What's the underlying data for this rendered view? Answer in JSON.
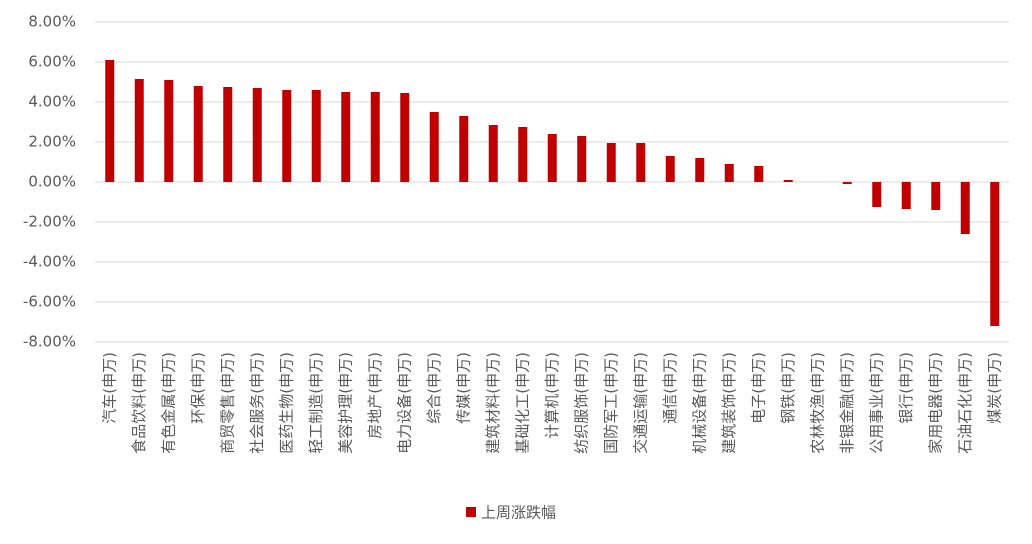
{
  "chart_data": {
    "type": "bar",
    "categories": [
      "汽车(申万)",
      "食品饮料(申万)",
      "有色金属(申万)",
      "环保(申万)",
      "商贸零售(申万)",
      "社会服务(申万)",
      "医药生物(申万)",
      "轻工制造(申万)",
      "美容护理(申万)",
      "房地产(申万)",
      "电力设备(申万)",
      "综合(申万)",
      "传媒(申万)",
      "建筑材料(申万)",
      "基础化工(申万)",
      "计算机(申万)",
      "纺织服饰(申万)",
      "国防军工(申万)",
      "交通运输(申万)",
      "通信(申万)",
      "机械设备(申万)",
      "建筑装饰(申万)",
      "电子(申万)",
      "钢铁(申万)",
      "农林牧渔(申万)",
      "非银金融(申万)",
      "公用事业(申万)",
      "银行(申万)",
      "家用电器(申万)",
      "石油石化(申万)",
      "煤炭(申万)"
    ],
    "series": [
      {
        "name": "上周涨跌幅",
        "color": "#c00000",
        "values": [
          6.1,
          5.15,
          5.1,
          4.8,
          4.75,
          4.7,
          4.6,
          4.6,
          4.5,
          4.5,
          4.45,
          3.5,
          3.3,
          2.85,
          2.75,
          2.4,
          2.3,
          1.95,
          1.95,
          1.3,
          1.2,
          0.9,
          0.8,
          0.1,
          0,
          -0.1,
          -1.25,
          -1.35,
          -1.4,
          -2.6,
          -7.2
        ]
      }
    ],
    "ylim": [
      -8,
      8
    ],
    "yticks": [
      {
        "value": 8,
        "label": "8.00%"
      },
      {
        "value": 6,
        "label": "6.00%"
      },
      {
        "value": 4,
        "label": "4.00%"
      },
      {
        "value": 2,
        "label": "2.00%"
      },
      {
        "value": 0,
        "label": "0.00%"
      },
      {
        "value": -2,
        "label": "-2.00%"
      },
      {
        "value": -4,
        "label": "-4.00%"
      },
      {
        "value": -6,
        "label": "-6.00%"
      },
      {
        "value": -8,
        "label": "-8.00%"
      }
    ],
    "grid": true,
    "legend": "bottom"
  }
}
